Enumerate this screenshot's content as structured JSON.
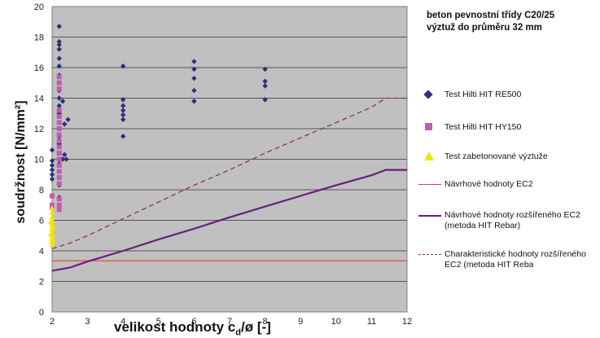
{
  "chart_data": {
    "type": "scatter",
    "note": [
      "beton pevnostní třídy C20/25",
      "výztuž do průměru 32 mm"
    ],
    "xlabel": {
      "prefix": "velikost hodnoty c",
      "sub": "d",
      "suffix": "/ø [-]"
    },
    "ylabel": "soudržnost  [N/mm²]",
    "xlim": [
      2,
      12
    ],
    "ylim": [
      0,
      20
    ],
    "x_ticks": [
      2,
      3,
      4,
      5,
      6,
      7,
      8,
      9,
      10,
      11,
      12
    ],
    "y_ticks": [
      0,
      2,
      4,
      6,
      8,
      10,
      12,
      14,
      16,
      18,
      20
    ],
    "grid": "horizontal",
    "legend_position": "right",
    "series": [
      {
        "name": "Test Hilti HIT RE500",
        "kind": "points",
        "marker": "diamond",
        "color": "#2b2f7c",
        "points": [
          [
            2,
            10.6
          ],
          [
            2,
            9.9
          ],
          [
            2,
            9.6
          ],
          [
            2,
            9.3
          ],
          [
            2,
            9.0
          ],
          [
            2,
            8.7
          ],
          [
            2.2,
            18.7
          ],
          [
            2.2,
            17.7
          ],
          [
            2.2,
            17.5
          ],
          [
            2.2,
            17.2
          ],
          [
            2.2,
            16.6
          ],
          [
            2.2,
            16.1
          ],
          [
            2.2,
            15.5
          ],
          [
            2.2,
            15.0
          ],
          [
            2.2,
            14.5
          ],
          [
            2.2,
            14.0
          ],
          [
            2.2,
            13.5
          ],
          [
            2.2,
            13.0
          ],
          [
            2.2,
            12.0
          ],
          [
            2.2,
            11.5
          ],
          [
            2.2,
            11.0
          ],
          [
            2.2,
            10.4
          ],
          [
            2.2,
            9.7
          ],
          [
            2.2,
            9.2
          ],
          [
            2.2,
            8.8
          ],
          [
            2.2,
            8.3
          ],
          [
            2.2,
            7.5
          ],
          [
            2.2,
            7.0
          ],
          [
            2.3,
            13.8
          ],
          [
            2.35,
            10.3
          ],
          [
            2.3,
            10.0
          ],
          [
            2.45,
            12.6
          ],
          [
            2.4,
            10.0
          ],
          [
            2.35,
            12.3
          ],
          [
            4,
            16.1
          ],
          [
            4,
            13.9
          ],
          [
            4,
            13.5
          ],
          [
            4,
            13.2
          ],
          [
            4,
            12.9
          ],
          [
            4,
            12.6
          ],
          [
            4,
            11.5
          ],
          [
            6,
            16.4
          ],
          [
            6,
            15.9
          ],
          [
            6,
            15.3
          ],
          [
            6,
            14.5
          ],
          [
            6,
            13.8
          ],
          [
            8,
            15.9
          ],
          [
            8,
            15.1
          ],
          [
            8,
            14.8
          ],
          [
            8,
            13.9
          ]
        ]
      },
      {
        "name": "Test Hilti HIT HY150",
        "kind": "points",
        "marker": "square",
        "color": "#c15bb0",
        "points": [
          [
            2,
            7.6
          ],
          [
            2,
            7.0
          ],
          [
            2,
            6.8
          ],
          [
            2.2,
            15.4
          ],
          [
            2.2,
            15.0
          ],
          [
            2.2,
            14.6
          ],
          [
            2.2,
            13.2
          ],
          [
            2.2,
            12.8
          ],
          [
            2.2,
            12.4
          ],
          [
            2.2,
            12.0
          ],
          [
            2.2,
            11.6
          ],
          [
            2.2,
            11.2
          ],
          [
            2.2,
            10.8
          ],
          [
            2.2,
            10.4
          ],
          [
            2.2,
            10.0
          ],
          [
            2.2,
            9.6
          ],
          [
            2.2,
            9.2
          ],
          [
            2.2,
            8.8
          ],
          [
            2.2,
            8.4
          ],
          [
            2.2,
            7.4
          ],
          [
            2.2,
            7.0
          ],
          [
            2.2,
            6.7
          ]
        ]
      },
      {
        "name": "Test zabetonované výztuže",
        "kind": "points",
        "marker": "triangle",
        "color": "#f5e400",
        "points": [
          [
            2,
            6.8
          ],
          [
            2,
            6.5
          ],
          [
            2,
            6.2
          ],
          [
            2,
            6.0
          ],
          [
            2,
            5.8
          ],
          [
            2,
            5.6
          ],
          [
            2,
            5.4
          ],
          [
            2,
            5.2
          ],
          [
            2,
            5.0
          ],
          [
            2,
            4.8
          ],
          [
            2,
            4.6
          ],
          [
            2,
            4.4
          ],
          [
            1.97,
            5.9
          ],
          [
            2.03,
            5.5
          ],
          [
            1.97,
            5.1
          ],
          [
            2.03,
            4.7
          ]
        ]
      },
      {
        "name": "Návrhové hodnoty EC2",
        "kind": "line",
        "color": "#e0403c",
        "dash": "",
        "points": [
          [
            2,
            3.35
          ],
          [
            12,
            3.35
          ]
        ]
      },
      {
        "name": "Návrhové hodnoty rozšířeného EC2 (metoda HIT Rebar)",
        "kind": "line",
        "color": "#6b1f7a",
        "dash": "",
        "points": [
          [
            2,
            2.7
          ],
          [
            2.5,
            2.9
          ],
          [
            3,
            3.3
          ],
          [
            4,
            4.0
          ],
          [
            5,
            4.75
          ],
          [
            6,
            5.45
          ],
          [
            7,
            6.2
          ],
          [
            8,
            6.9
          ],
          [
            9,
            7.6
          ],
          [
            10,
            8.3
          ],
          [
            11,
            8.95
          ],
          [
            11.4,
            9.3
          ],
          [
            12,
            9.3
          ]
        ]
      },
      {
        "name": "Charakteristické hodnoty rozšířeného EC2 (metoda HIT Reba",
        "kind": "line",
        "color": "#8b3a3a",
        "dash": "6,4",
        "points": [
          [
            2,
            4.15
          ],
          [
            2.5,
            4.5
          ],
          [
            3,
            5.0
          ],
          [
            4,
            6.1
          ],
          [
            5,
            7.2
          ],
          [
            6,
            8.3
          ],
          [
            7,
            9.3
          ],
          [
            8,
            10.4
          ],
          [
            9,
            11.4
          ],
          [
            10,
            12.4
          ],
          [
            11,
            13.4
          ],
          [
            11.4,
            14.0
          ],
          [
            12,
            14.0
          ]
        ]
      }
    ]
  }
}
